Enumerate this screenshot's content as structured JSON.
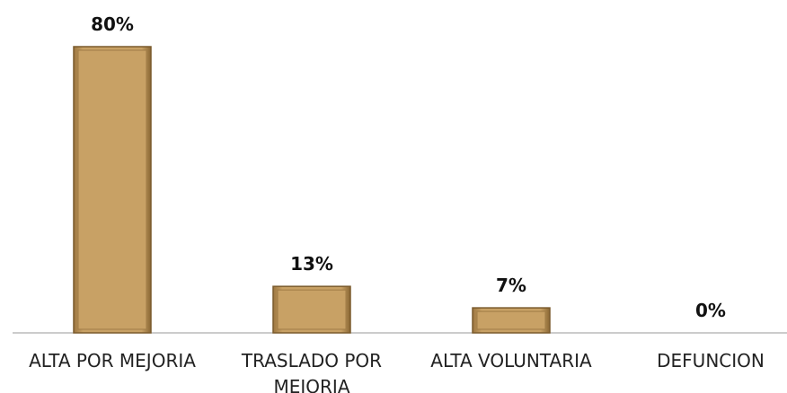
{
  "chart_data": {
    "type": "bar",
    "categories": [
      "ALTA POR MEJORIA",
      "TRASLADO POR MEJORIA",
      "ALTA VOLUNTARIA",
      "DEFUNCION"
    ],
    "values": [
      80,
      13,
      7,
      0
    ],
    "value_labels": [
      "80%",
      "13%",
      "7%",
      "0%"
    ],
    "color": "#c8a165"
  }
}
